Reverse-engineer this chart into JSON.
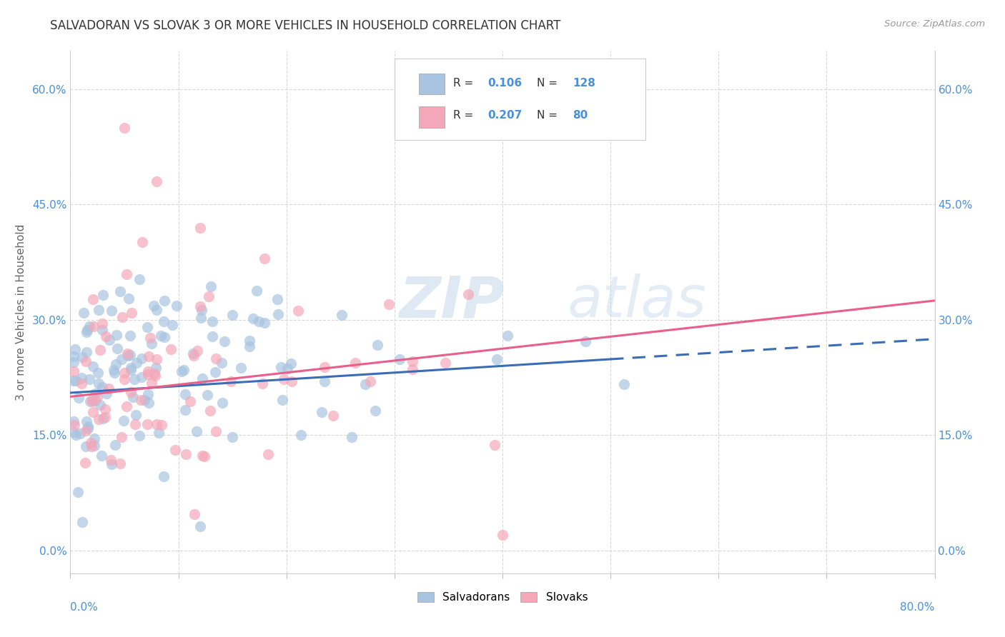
{
  "title": "SALVADORAN VS SLOVAK 3 OR MORE VEHICLES IN HOUSEHOLD CORRELATION CHART",
  "source": "Source: ZipAtlas.com",
  "ylabel": "3 or more Vehicles in Household",
  "xlim": [
    0.0,
    80.0
  ],
  "ylim": [
    -3.0,
    65.0
  ],
  "yticks": [
    0.0,
    15.0,
    30.0,
    45.0,
    60.0
  ],
  "ytick_labels": [
    "0.0%",
    "15.0%",
    "30.0%",
    "45.0%",
    "60.0%"
  ],
  "salvadoran_R": "0.106",
  "salvadoran_N": "128",
  "slovak_R": "0.207",
  "slovak_N": "80",
  "salvadoran_color": "#a8c4e0",
  "slovak_color": "#f4a7b9",
  "salvadoran_line_color": "#3a6db5",
  "slovak_line_color": "#e8608a",
  "background_color": "#ffffff",
  "grid_color": "#d8d8d8",
  "title_color": "#333333",
  "axis_label_color": "#4a90d9",
  "sal_trend_x0": 0.0,
  "sal_trend_y0": 20.5,
  "sal_trend_x1": 80.0,
  "sal_trend_y1": 27.5,
  "sal_solid_end": 50.0,
  "slo_trend_x0": 0.0,
  "slo_trend_y0": 20.0,
  "slo_trend_x1": 80.0,
  "slo_trend_y1": 32.5,
  "slo_solid_end": 80.0
}
